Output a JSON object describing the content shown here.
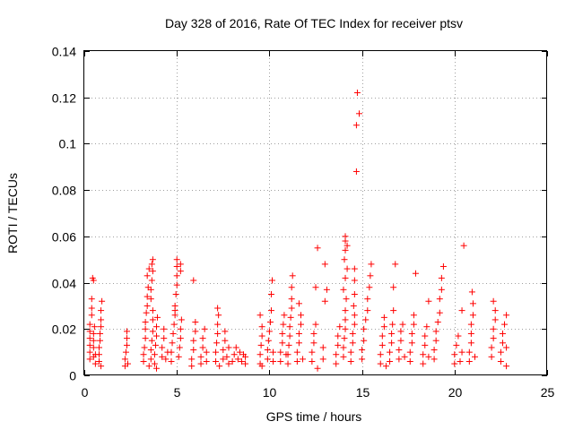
{
  "chart_data": {
    "type": "scatter",
    "title": "Day 328 of 2016, Rate Of TEC Index for receiver ptsv",
    "xlabel": "GPS time / hours",
    "ylabel": "ROTI / TECUs",
    "xlim": [
      0,
      25
    ],
    "ylim": [
      0,
      0.14
    ],
    "grid": true,
    "marker": "plus",
    "series": [
      {
        "name": "ROTI",
        "color": "#ff0000",
        "points": [
          [
            0.3,
            0.007
          ],
          [
            0.3,
            0.01
          ],
          [
            0.3,
            0.013
          ],
          [
            0.3,
            0.016
          ],
          [
            0.3,
            0.019
          ],
          [
            0.3,
            0.022
          ],
          [
            0.4,
            0.026
          ],
          [
            0.4,
            0.029
          ],
          [
            0.4,
            0.033
          ],
          [
            0.5,
            0.041
          ],
          [
            0.45,
            0.042
          ],
          [
            0.5,
            0.008
          ],
          [
            0.5,
            0.012
          ],
          [
            0.5,
            0.015
          ],
          [
            0.5,
            0.018
          ],
          [
            0.55,
            0.021
          ],
          [
            0.6,
            0.005
          ],
          [
            0.6,
            0.009
          ],
          [
            0.8,
            0.006
          ],
          [
            0.8,
            0.009
          ],
          [
            0.8,
            0.012
          ],
          [
            0.85,
            0.015
          ],
          [
            0.85,
            0.018
          ],
          [
            0.9,
            0.021
          ],
          [
            0.9,
            0.024
          ],
          [
            0.9,
            0.028
          ],
          [
            0.95,
            0.032
          ],
          [
            0.9,
            0.004
          ],
          [
            2.2,
            0.004
          ],
          [
            2.2,
            0.007
          ],
          [
            2.25,
            0.01
          ],
          [
            2.3,
            0.013
          ],
          [
            2.3,
            0.016
          ],
          [
            2.3,
            0.019
          ],
          [
            2.35,
            0.005
          ],
          [
            3.2,
            0.006
          ],
          [
            3.2,
            0.009
          ],
          [
            3.25,
            0.012
          ],
          [
            3.3,
            0.016
          ],
          [
            3.3,
            0.02
          ],
          [
            3.3,
            0.023
          ],
          [
            3.35,
            0.027
          ],
          [
            3.4,
            0.03
          ],
          [
            3.4,
            0.034
          ],
          [
            3.45,
            0.038
          ],
          [
            3.4,
            0.043
          ],
          [
            3.5,
            0.046
          ],
          [
            3.5,
            0.004
          ],
          [
            3.6,
            0.007
          ],
          [
            3.6,
            0.011
          ],
          [
            3.65,
            0.015
          ],
          [
            3.7,
            0.019
          ],
          [
            3.7,
            0.024
          ],
          [
            3.7,
            0.028
          ],
          [
            3.6,
            0.033
          ],
          [
            3.6,
            0.037
          ],
          [
            3.65,
            0.041
          ],
          [
            3.7,
            0.045
          ],
          [
            3.65,
            0.048
          ],
          [
            3.7,
            0.05
          ],
          [
            3.8,
            0.005
          ],
          [
            3.8,
            0.009
          ],
          [
            3.85,
            0.013
          ],
          [
            3.9,
            0.017
          ],
          [
            3.9,
            0.021
          ],
          [
            3.95,
            0.025
          ],
          [
            3.9,
            0.003
          ],
          [
            4.2,
            0.008
          ],
          [
            4.2,
            0.012
          ],
          [
            4.3,
            0.016
          ],
          [
            4.3,
            0.02
          ],
          [
            4.4,
            0.007
          ],
          [
            4.5,
            0.01
          ],
          [
            4.7,
            0.006
          ],
          [
            4.7,
            0.01
          ],
          [
            4.75,
            0.014
          ],
          [
            4.8,
            0.018
          ],
          [
            4.85,
            0.022
          ],
          [
            4.9,
            0.026
          ],
          [
            4.9,
            0.03
          ],
          [
            4.95,
            0.035
          ],
          [
            5.0,
            0.039
          ],
          [
            5.0,
            0.043
          ],
          [
            5.0,
            0.047
          ],
          [
            5.0,
            0.05
          ],
          [
            4.9,
            0.028
          ],
          [
            5.1,
            0.008
          ],
          [
            5.15,
            0.012
          ],
          [
            5.2,
            0.016
          ],
          [
            5.2,
            0.02
          ],
          [
            5.25,
            0.024
          ],
          [
            5.2,
            0.045
          ],
          [
            5.2,
            0.048
          ],
          [
            5.8,
            0.004
          ],
          [
            5.8,
            0.007
          ],
          [
            5.9,
            0.011
          ],
          [
            5.9,
            0.015
          ],
          [
            6.0,
            0.019
          ],
          [
            6.0,
            0.023
          ],
          [
            5.9,
            0.041
          ],
          [
            6.3,
            0.005
          ],
          [
            6.3,
            0.008
          ],
          [
            6.4,
            0.012
          ],
          [
            6.4,
            0.016
          ],
          [
            6.5,
            0.02
          ],
          [
            6.6,
            0.006
          ],
          [
            6.6,
            0.01
          ],
          [
            7.1,
            0.006
          ],
          [
            7.1,
            0.01
          ],
          [
            7.15,
            0.014
          ],
          [
            7.2,
            0.018
          ],
          [
            7.2,
            0.022
          ],
          [
            7.25,
            0.026
          ],
          [
            7.2,
            0.029
          ],
          [
            7.3,
            0.004
          ],
          [
            7.5,
            0.007
          ],
          [
            7.5,
            0.011
          ],
          [
            7.6,
            0.015
          ],
          [
            7.6,
            0.019
          ],
          [
            7.7,
            0.008
          ],
          [
            7.8,
            0.005
          ],
          [
            7.8,
            0.012
          ],
          [
            8.0,
            0.006
          ],
          [
            8.1,
            0.009
          ],
          [
            8.2,
            0.012
          ],
          [
            8.3,
            0.007
          ],
          [
            8.4,
            0.01
          ],
          [
            8.5,
            0.006
          ],
          [
            8.6,
            0.009
          ],
          [
            8.7,
            0.005
          ],
          [
            8.7,
            0.008
          ],
          [
            9.5,
            0.005
          ],
          [
            9.5,
            0.009
          ],
          [
            9.55,
            0.013
          ],
          [
            9.6,
            0.017
          ],
          [
            9.6,
            0.021
          ],
          [
            9.5,
            0.026
          ],
          [
            9.6,
            0.004
          ],
          [
            9.9,
            0.007
          ],
          [
            9.9,
            0.011
          ],
          [
            9.95,
            0.015
          ],
          [
            10.0,
            0.019
          ],
          [
            10.05,
            0.023
          ],
          [
            10.1,
            0.028
          ],
          [
            10.1,
            0.035
          ],
          [
            10.15,
            0.041
          ],
          [
            10.2,
            0.006
          ],
          [
            10.2,
            0.01
          ],
          [
            10.6,
            0.006
          ],
          [
            10.6,
            0.01
          ],
          [
            10.7,
            0.014
          ],
          [
            10.7,
            0.018
          ],
          [
            10.75,
            0.022
          ],
          [
            10.8,
            0.026
          ],
          [
            10.9,
            0.009
          ],
          [
            11.0,
            0.005
          ],
          [
            11.0,
            0.009
          ],
          [
            11.05,
            0.013
          ],
          [
            11.1,
            0.017
          ],
          [
            11.1,
            0.021
          ],
          [
            11.15,
            0.025
          ],
          [
            11.2,
            0.029
          ],
          [
            11.2,
            0.033
          ],
          [
            11.2,
            0.038
          ],
          [
            11.25,
            0.043
          ],
          [
            11.5,
            0.006
          ],
          [
            11.5,
            0.01
          ],
          [
            11.6,
            0.014
          ],
          [
            11.6,
            0.018
          ],
          [
            11.7,
            0.022
          ],
          [
            11.7,
            0.026
          ],
          [
            11.6,
            0.031
          ],
          [
            11.8,
            0.007
          ],
          [
            12.3,
            0.006
          ],
          [
            12.3,
            0.01
          ],
          [
            12.4,
            0.014
          ],
          [
            12.4,
            0.018
          ],
          [
            12.5,
            0.022
          ],
          [
            12.6,
            0.003
          ],
          [
            12.5,
            0.038
          ],
          [
            12.6,
            0.055
          ],
          [
            12.9,
            0.007
          ],
          [
            12.9,
            0.012
          ],
          [
            13.0,
            0.032
          ],
          [
            13.1,
            0.037
          ],
          [
            13.0,
            0.048
          ],
          [
            13.6,
            0.005
          ],
          [
            13.6,
            0.009
          ],
          [
            13.7,
            0.013
          ],
          [
            13.7,
            0.017
          ],
          [
            13.8,
            0.021
          ],
          [
            14.0,
            0.008
          ],
          [
            14.0,
            0.012
          ],
          [
            14.05,
            0.016
          ],
          [
            14.1,
            0.02
          ],
          [
            14.1,
            0.024
          ],
          [
            14.1,
            0.028
          ],
          [
            14.15,
            0.033
          ],
          [
            14.0,
            0.037
          ],
          [
            14.1,
            0.042
          ],
          [
            14.2,
            0.046
          ],
          [
            14.05,
            0.05
          ],
          [
            14.1,
            0.054
          ],
          [
            14.1,
            0.058
          ],
          [
            14.2,
            0.056
          ],
          [
            14.1,
            0.06
          ],
          [
            14.4,
            0.006
          ],
          [
            14.4,
            0.01
          ],
          [
            14.5,
            0.014
          ],
          [
            14.5,
            0.018
          ],
          [
            14.6,
            0.022
          ],
          [
            14.6,
            0.026
          ],
          [
            14.55,
            0.03
          ],
          [
            14.6,
            0.035
          ],
          [
            14.6,
            0.041
          ],
          [
            14.6,
            0.046
          ],
          [
            14.7,
            0.088
          ],
          [
            14.7,
            0.108
          ],
          [
            14.75,
            0.122
          ],
          [
            14.85,
            0.113
          ],
          [
            15.0,
            0.007
          ],
          [
            15.0,
            0.011
          ],
          [
            15.1,
            0.015
          ],
          [
            15.1,
            0.02
          ],
          [
            15.2,
            0.024
          ],
          [
            15.3,
            0.028
          ],
          [
            15.3,
            0.033
          ],
          [
            15.4,
            0.038
          ],
          [
            15.45,
            0.043
          ],
          [
            15.5,
            0.048
          ],
          [
            16.0,
            0.005
          ],
          [
            16.0,
            0.009
          ],
          [
            16.1,
            0.013
          ],
          [
            16.1,
            0.017
          ],
          [
            16.2,
            0.021
          ],
          [
            16.2,
            0.025
          ],
          [
            16.3,
            0.004
          ],
          [
            16.5,
            0.006
          ],
          [
            16.5,
            0.01
          ],
          [
            16.6,
            0.014
          ],
          [
            16.6,
            0.018
          ],
          [
            16.65,
            0.022
          ],
          [
            16.7,
            0.028
          ],
          [
            16.7,
            0.038
          ],
          [
            16.8,
            0.048
          ],
          [
            17.0,
            0.007
          ],
          [
            17.0,
            0.011
          ],
          [
            17.1,
            0.015
          ],
          [
            17.1,
            0.019
          ],
          [
            17.2,
            0.022
          ],
          [
            17.3,
            0.008
          ],
          [
            17.6,
            0.006
          ],
          [
            17.6,
            0.01
          ],
          [
            17.7,
            0.014
          ],
          [
            17.7,
            0.018
          ],
          [
            17.8,
            0.022
          ],
          [
            17.8,
            0.026
          ],
          [
            17.9,
            0.044
          ],
          [
            18.3,
            0.005
          ],
          [
            18.3,
            0.009
          ],
          [
            18.4,
            0.013
          ],
          [
            18.4,
            0.017
          ],
          [
            18.5,
            0.021
          ],
          [
            18.6,
            0.008
          ],
          [
            18.6,
            0.032
          ],
          [
            18.9,
            0.007
          ],
          [
            18.9,
            0.011
          ],
          [
            19.0,
            0.015
          ],
          [
            19.0,
            0.019
          ],
          [
            19.1,
            0.023
          ],
          [
            19.2,
            0.027
          ],
          [
            19.2,
            0.033
          ],
          [
            19.3,
            0.037
          ],
          [
            19.3,
            0.042
          ],
          [
            19.4,
            0.047
          ],
          [
            20.0,
            0.005
          ],
          [
            20.0,
            0.009
          ],
          [
            20.1,
            0.013
          ],
          [
            20.2,
            0.017
          ],
          [
            20.3,
            0.006
          ],
          [
            20.4,
            0.01
          ],
          [
            20.4,
            0.028
          ],
          [
            20.5,
            0.056
          ],
          [
            20.8,
            0.006
          ],
          [
            20.8,
            0.01
          ],
          [
            20.9,
            0.014
          ],
          [
            20.9,
            0.018
          ],
          [
            20.9,
            0.022
          ],
          [
            21.0,
            0.026
          ],
          [
            21.0,
            0.031
          ],
          [
            20.95,
            0.036
          ],
          [
            21.1,
            0.008
          ],
          [
            22.0,
            0.008
          ],
          [
            22.0,
            0.012
          ],
          [
            22.1,
            0.016
          ],
          [
            22.1,
            0.02
          ],
          [
            22.2,
            0.024
          ],
          [
            22.2,
            0.028
          ],
          [
            22.1,
            0.032
          ],
          [
            22.5,
            0.006
          ],
          [
            22.5,
            0.01
          ],
          [
            22.6,
            0.014
          ],
          [
            22.6,
            0.018
          ],
          [
            22.7,
            0.022
          ],
          [
            22.8,
            0.026
          ],
          [
            22.8,
            0.004
          ],
          [
            22.8,
            0.012
          ]
        ]
      }
    ],
    "xticks": [
      0,
      5,
      10,
      15,
      20,
      25
    ],
    "yticks": [
      0,
      0.02,
      0.04,
      0.06,
      0.08,
      0.1,
      0.12,
      0.14
    ],
    "ytick_labels": [
      "0",
      "0.02",
      "0.04",
      "0.06",
      "0.08",
      "0.1",
      "0.12",
      "0.14"
    ]
  }
}
